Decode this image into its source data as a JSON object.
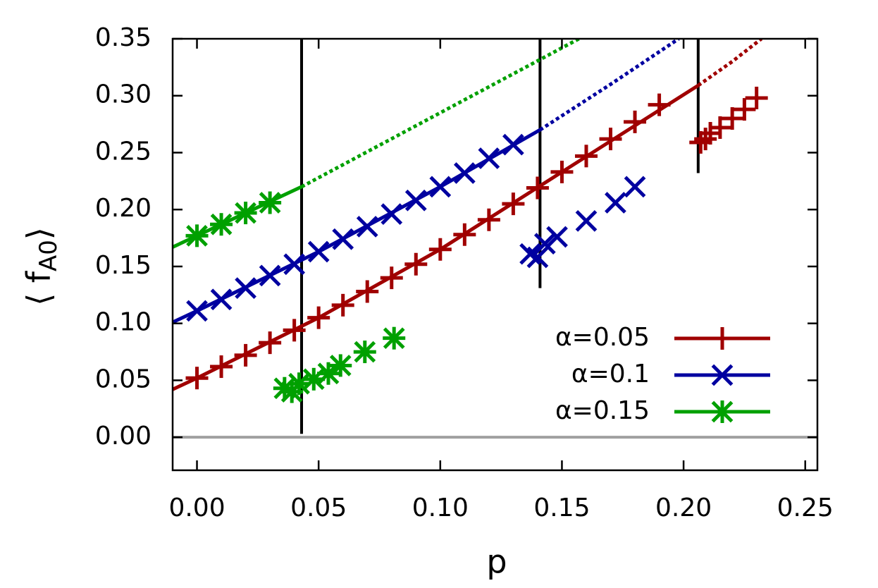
{
  "chart_data": {
    "type": "line",
    "xlabel": "p",
    "ylabel": {
      "main": "⟨ f",
      "sub": "A0",
      "end": "⟩"
    },
    "xlim": [
      -0.01,
      0.255
    ],
    "ylim": [
      -0.029,
      0.35
    ],
    "xticks": [
      {
        "value": 0,
        "label": "0.00"
      },
      {
        "value": 0.05,
        "label": "0.05"
      },
      {
        "value": 0.1,
        "label": "0.10"
      },
      {
        "value": 0.15,
        "label": "0.15"
      },
      {
        "value": 0.2,
        "label": "0.20"
      },
      {
        "value": 0.25,
        "label": "0.25"
      }
    ],
    "yticks": [
      {
        "value": 0,
        "label": "0.00"
      },
      {
        "value": 0.05,
        "label": "0.05"
      },
      {
        "value": 0.1,
        "label": "0.10"
      },
      {
        "value": 0.15,
        "label": "0.15"
      },
      {
        "value": 0.2,
        "label": "0.20"
      },
      {
        "value": 0.25,
        "label": "0.25"
      },
      {
        "value": 0.3,
        "label": "0.30"
      },
      {
        "value": 0.35,
        "label": "0.35"
      }
    ],
    "zero_line_color": "#a0a0a0",
    "vlines": [
      {
        "x": 0.043,
        "y": [
          0.003,
          0.35
        ]
      },
      {
        "x": 0.141,
        "y": [
          0.131,
          0.35
        ]
      },
      {
        "x": 0.206,
        "y": [
          0.232,
          0.35
        ]
      }
    ],
    "legend": "lower right",
    "series": [
      {
        "name": "α=0.05",
        "color": "#a00000",
        "marker": "plus",
        "points": {
          "x": [
            0,
            0.01,
            0.02,
            0.03,
            0.04,
            0.05,
            0.06,
            0.07,
            0.08,
            0.09,
            0.1,
            0.11,
            0.12,
            0.13,
            0.14,
            0.15,
            0.16,
            0.17,
            0.18,
            0.19
          ],
          "values": [
            0.052,
            0.062,
            0.072,
            0.083,
            0.094,
            0.105,
            0.116,
            0.128,
            0.14,
            0.152,
            0.165,
            0.178,
            0.191,
            0.205,
            0.219,
            0.233,
            0.247,
            0.262,
            0.277,
            0.292
          ]
        },
        "branch": {
          "x": [
            0.207,
            0.209,
            0.211,
            0.215,
            0.22,
            0.225,
            0.23
          ],
          "values": [
            0.259,
            0.262,
            0.267,
            0.272,
            0.28,
            0.288,
            0.298
          ]
        },
        "fit": {
          "x": [
            -0.01,
            0,
            0.05,
            0.1,
            0.15,
            0.206
          ],
          "values": [
            0.042,
            0.052,
            0.105,
            0.165,
            0.233,
            0.309
          ]
        },
        "extrapolation": {
          "x": [
            0.206,
            0.22,
            0.232
          ],
          "values": [
            0.309,
            0.33,
            0.35
          ]
        }
      },
      {
        "name": "α=0.1",
        "color": "#0000a0",
        "marker": "cross",
        "points": {
          "x": [
            0,
            0.01,
            0.02,
            0.03,
            0.04,
            0.05,
            0.06,
            0.07,
            0.08,
            0.09,
            0.1,
            0.11,
            0.12,
            0.13
          ],
          "values": [
            0.111,
            0.121,
            0.131,
            0.142,
            0.152,
            0.163,
            0.174,
            0.185,
            0.196,
            0.208,
            0.22,
            0.232,
            0.245,
            0.257
          ]
        },
        "branch": {
          "x": [
            0.137,
            0.14,
            0.143,
            0.148,
            0.16,
            0.172,
            0.18
          ],
          "values": [
            0.161,
            0.158,
            0.17,
            0.176,
            0.19,
            0.206,
            0.22
          ]
        },
        "fit": {
          "x": [
            -0.01,
            0,
            0.05,
            0.1,
            0.141
          ],
          "values": [
            0.101,
            0.111,
            0.163,
            0.22,
            0.27
          ]
        },
        "extrapolation": {
          "x": [
            0.141,
            0.17,
            0.198
          ],
          "values": [
            0.27,
            0.31,
            0.35
          ]
        }
      },
      {
        "name": "α=0.15",
        "color": "#00a000",
        "marker": "star",
        "points": {
          "x": [
            0,
            0.01,
            0.02,
            0.03
          ],
          "values": [
            0.177,
            0.187,
            0.197,
            0.206
          ]
        },
        "branch": {
          "x": [
            0.036,
            0.039,
            0.042,
            0.048,
            0.054,
            0.059,
            0.069,
            0.081
          ],
          "values": [
            0.043,
            0.04,
            0.047,
            0.051,
            0.056,
            0.063,
            0.075,
            0.087
          ]
        },
        "fit": {
          "x": [
            -0.01,
            0,
            0.043
          ],
          "values": [
            0.167,
            0.177,
            0.22
          ]
        },
        "extrapolation": {
          "x": [
            0.043,
            0.1,
            0.157
          ],
          "values": [
            0.22,
            0.285,
            0.35
          ]
        }
      }
    ]
  }
}
